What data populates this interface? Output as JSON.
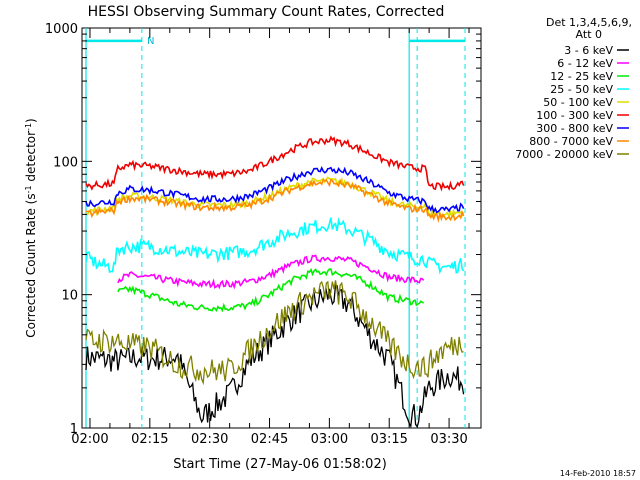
{
  "chart_data": {
    "type": "line",
    "title": "HESSI Observing Summary Count Rates, Corrected",
    "xlabel": "Start Time (27-May-06 01:58:02)",
    "ylabel_main": "Corrected Count Rate (s",
    "ylabel_mid": " detector",
    "ylabel_end": ")",
    "ylabel_sup": "-1",
    "yscale": "log",
    "ylim": [
      1,
      1000
    ],
    "x_unit": "minutes since 02:00",
    "xlim": [
      -2,
      98
    ],
    "x_ticks": [
      0,
      15,
      30,
      45,
      60,
      75,
      90
    ],
    "x_tick_labels": [
      "02:00",
      "02:15",
      "02:30",
      "02:45",
      "03:00",
      "03:15",
      "03:30"
    ],
    "y_ticks": [
      1,
      10,
      100,
      1000
    ],
    "y_tick_labels": [
      "1",
      "10",
      "100",
      "1000"
    ],
    "legend_header": [
      "Det 1,3,4,5,6,9,",
      "Att 0"
    ],
    "legend_position": "right",
    "footer": "14-Feb-2010 18:57",
    "annotation": "N",
    "series": [
      {
        "name": "3 - 6 keV",
        "color": "#000000",
        "points": [
          [
            -1,
            3.4
          ],
          [
            6,
            3.2
          ],
          [
            7,
            3.2
          ],
          [
            12,
            3.4
          ],
          [
            15,
            3.3
          ],
          [
            22,
            3.4
          ],
          [
            28,
            1.2
          ],
          [
            35,
            1.8
          ],
          [
            40,
            3.2
          ],
          [
            45,
            4.5
          ],
          [
            50,
            6.5
          ],
          [
            55,
            8.5
          ],
          [
            60,
            10
          ],
          [
            65,
            8.5
          ],
          [
            70,
            5
          ],
          [
            75,
            3.2
          ],
          [
            80,
            1.3
          ],
          [
            82,
            1.2
          ],
          [
            85,
            2.0
          ],
          [
            90,
            2.5
          ],
          [
            94,
            2.2
          ]
        ]
      },
      {
        "name": "6 - 12 keV",
        "color": "#ff00ff",
        "points": [
          [
            -1,
            0
          ],
          [
            6,
            0
          ],
          [
            7,
            13
          ],
          [
            10,
            14
          ],
          [
            15,
            13.5
          ],
          [
            22,
            12.5
          ],
          [
            28,
            12
          ],
          [
            35,
            12
          ],
          [
            40,
            12.5
          ],
          [
            45,
            14
          ],
          [
            50,
            16.5
          ],
          [
            55,
            18.5
          ],
          [
            60,
            19
          ],
          [
            65,
            18
          ],
          [
            70,
            16
          ],
          [
            75,
            13.5
          ],
          [
            80,
            13
          ],
          [
            84,
            12.5
          ],
          [
            85,
            0
          ]
        ]
      },
      {
        "name": "12 - 25 keV",
        "color": "#00ee00",
        "points": [
          [
            -1,
            0
          ],
          [
            6,
            0
          ],
          [
            7,
            10.5
          ],
          [
            10,
            11
          ],
          [
            15,
            10
          ],
          [
            22,
            8.5
          ],
          [
            28,
            8
          ],
          [
            35,
            8
          ],
          [
            40,
            8.3
          ],
          [
            45,
            10
          ],
          [
            50,
            12.5
          ],
          [
            55,
            14.5
          ],
          [
            60,
            15
          ],
          [
            65,
            14
          ],
          [
            70,
            12
          ],
          [
            75,
            9.5
          ],
          [
            80,
            9
          ],
          [
            84,
            8.5
          ],
          [
            85,
            0
          ]
        ]
      },
      {
        "name": "25 - 50 keV",
        "color": "#00ffff",
        "points": [
          [
            -1,
            19
          ],
          [
            2,
            17
          ],
          [
            6,
            16
          ],
          [
            7,
            22
          ],
          [
            10,
            23
          ],
          [
            15,
            23
          ],
          [
            22,
            21
          ],
          [
            28,
            20
          ],
          [
            35,
            20.5
          ],
          [
            40,
            21.5
          ],
          [
            45,
            25
          ],
          [
            50,
            29
          ],
          [
            55,
            32
          ],
          [
            60,
            34
          ],
          [
            65,
            31
          ],
          [
            70,
            26
          ],
          [
            75,
            21
          ],
          [
            80,
            19
          ],
          [
            84,
            18.5
          ],
          [
            85,
            17
          ],
          [
            90,
            16
          ],
          [
            94,
            17
          ]
        ]
      },
      {
        "name": "50 - 100 keV",
        "color": "#dddd00",
        "points": [
          [
            -1,
            42
          ],
          [
            6,
            45
          ],
          [
            7,
            52
          ],
          [
            10,
            55
          ],
          [
            15,
            54
          ],
          [
            22,
            50
          ],
          [
            28,
            47
          ],
          [
            35,
            47
          ],
          [
            40,
            49
          ],
          [
            45,
            55
          ],
          [
            50,
            63
          ],
          [
            55,
            70
          ],
          [
            60,
            72
          ],
          [
            65,
            68
          ],
          [
            70,
            59
          ],
          [
            75,
            50
          ],
          [
            80,
            46
          ],
          [
            84,
            46
          ],
          [
            85,
            41
          ],
          [
            90,
            40
          ],
          [
            94,
            42
          ]
        ]
      },
      {
        "name": "100 - 300 keV",
        "color": "#ee0000",
        "points": [
          [
            -1,
            65
          ],
          [
            6,
            68
          ],
          [
            7,
            88
          ],
          [
            10,
            94
          ],
          [
            15,
            92
          ],
          [
            22,
            85
          ],
          [
            28,
            80
          ],
          [
            35,
            80
          ],
          [
            40,
            85
          ],
          [
            45,
            100
          ],
          [
            50,
            120
          ],
          [
            55,
            138
          ],
          [
            60,
            145
          ],
          [
            65,
            135
          ],
          [
            70,
            115
          ],
          [
            75,
            98
          ],
          [
            80,
            90
          ],
          [
            84,
            88
          ],
          [
            85,
            65
          ],
          [
            90,
            64
          ],
          [
            94,
            70
          ]
        ]
      },
      {
        "name": "300 - 800 keV",
        "color": "#0000ff",
        "points": [
          [
            -1,
            48
          ],
          [
            6,
            50
          ],
          [
            7,
            58
          ],
          [
            10,
            62
          ],
          [
            15,
            61
          ],
          [
            22,
            56
          ],
          [
            28,
            52
          ],
          [
            35,
            52
          ],
          [
            40,
            55
          ],
          [
            45,
            63
          ],
          [
            50,
            74
          ],
          [
            55,
            84
          ],
          [
            60,
            87
          ],
          [
            65,
            82
          ],
          [
            70,
            70
          ],
          [
            75,
            58
          ],
          [
            80,
            52
          ],
          [
            84,
            50
          ],
          [
            85,
            44
          ],
          [
            90,
            43
          ],
          [
            94,
            46
          ]
        ]
      },
      {
        "name": "800 - 7000 keV",
        "color": "#ff8800",
        "points": [
          [
            -1,
            40
          ],
          [
            6,
            43
          ],
          [
            7,
            50
          ],
          [
            10,
            53
          ],
          [
            15,
            52
          ],
          [
            22,
            48
          ],
          [
            28,
            45
          ],
          [
            35,
            45
          ],
          [
            40,
            47
          ],
          [
            45,
            53
          ],
          [
            50,
            61
          ],
          [
            55,
            68
          ],
          [
            60,
            70
          ],
          [
            65,
            66
          ],
          [
            70,
            57
          ],
          [
            75,
            48
          ],
          [
            80,
            44
          ],
          [
            84,
            44
          ],
          [
            85,
            39
          ],
          [
            90,
            38
          ],
          [
            94,
            40
          ]
        ]
      },
      {
        "name": "7000 - 20000 keV",
        "color": "#808000",
        "points": [
          [
            -1,
            4.5
          ],
          [
            6,
            4.5
          ],
          [
            10,
            4.2
          ],
          [
            15,
            4.0
          ],
          [
            22,
            3.0
          ],
          [
            28,
            2.7
          ],
          [
            35,
            2.7
          ],
          [
            40,
            3.8
          ],
          [
            45,
            5.5
          ],
          [
            50,
            7.5
          ],
          [
            55,
            9.5
          ],
          [
            60,
            11
          ],
          [
            65,
            9.5
          ],
          [
            70,
            6.5
          ],
          [
            75,
            4.2
          ],
          [
            80,
            3.0
          ],
          [
            84,
            2.8
          ],
          [
            88,
            3.8
          ],
          [
            94,
            4.5
          ]
        ]
      }
    ],
    "markers": {
      "solid_lines": [
        -1,
        80
      ],
      "dashed_lines": [
        13,
        82,
        94
      ],
      "top_bars": [
        [
          -1,
          13
        ],
        [
          80,
          94
        ]
      ],
      "bar_level": 800,
      "color": "#00ffff"
    }
  }
}
